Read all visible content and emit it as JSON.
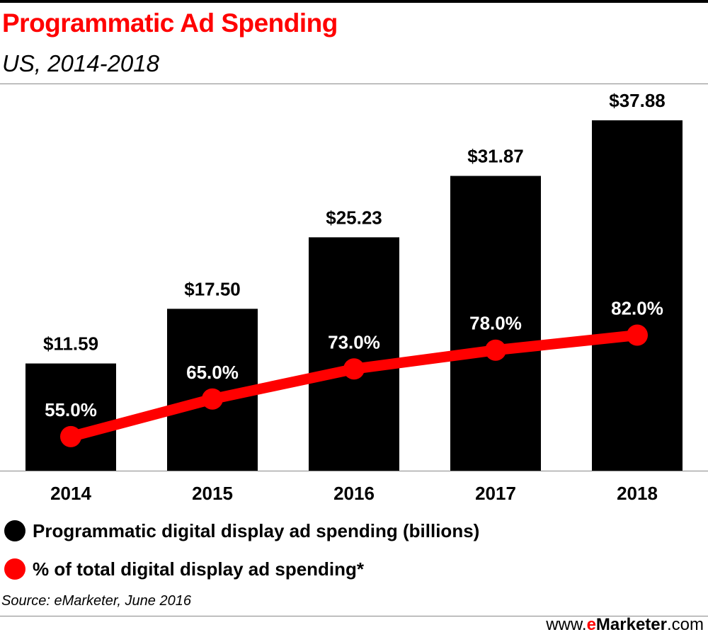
{
  "header": {
    "title": "Programmatic Ad Spending",
    "subtitle": "US, 2014-2018"
  },
  "colors": {
    "title": "#ff0000",
    "bar": "#000000",
    "line": "#ff0000",
    "bar_label": "#000000",
    "line_label": "#ffffff"
  },
  "chart_data": {
    "type": "bar",
    "categories": [
      "2014",
      "2015",
      "2016",
      "2017",
      "2018"
    ],
    "series": [
      {
        "name": "Programmatic digital display ad spending (billions)",
        "type": "bar",
        "values": [
          11.59,
          17.5,
          25.23,
          31.87,
          37.88
        ],
        "labels": [
          "$11.59",
          "$17.50",
          "$25.23",
          "$31.87",
          "$37.88"
        ]
      },
      {
        "name": "% of total digital display ad spending*",
        "type": "line",
        "values": [
          55.0,
          65.0,
          73.0,
          78.0,
          82.0
        ],
        "labels": [
          "55.0%",
          "65.0%",
          "73.0%",
          "78.0%",
          "82.0%"
        ]
      }
    ],
    "ylim_bars": [
      0,
      40
    ],
    "ylim_line": [
      0,
      100
    ],
    "grid": false,
    "legend_position": "bottom-left"
  },
  "legend": {
    "items": [
      {
        "label": "Programmatic digital display ad spending (billions)",
        "color": "#000000"
      },
      {
        "label": "% of total digital display ad spending*",
        "color": "#ff0000"
      }
    ]
  },
  "footer": {
    "source": "Source: eMarketer, June 2016",
    "brand_prefix": "www.",
    "brand_e": "e",
    "brand_name": "Marketer",
    "brand_suffix": ".com"
  }
}
